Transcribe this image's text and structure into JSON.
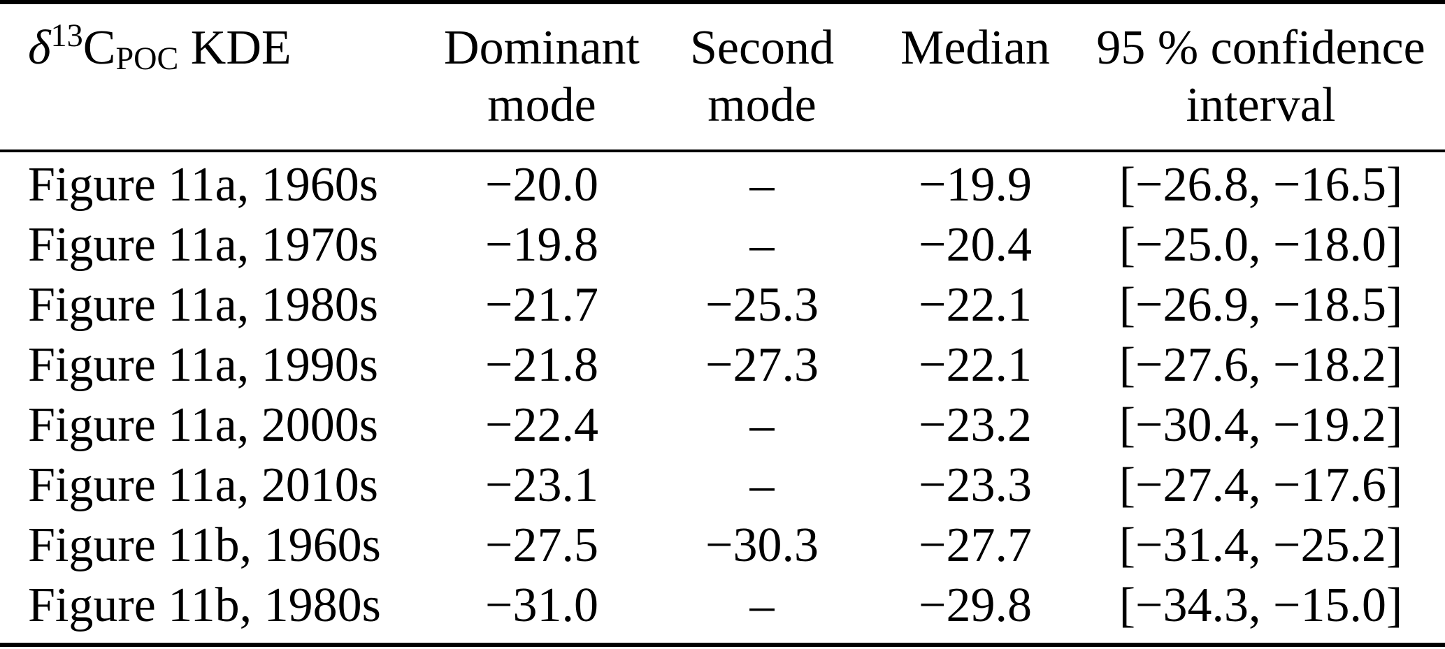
{
  "colors": {
    "background": "#ffffff",
    "text": "#000000",
    "rule": "#000000"
  },
  "table": {
    "header": {
      "kde_delta": "δ",
      "kde_sup": "13",
      "kde_c": "C",
      "kde_sub": "POC",
      "kde_rest": " KDE",
      "dominant_line1": "Dominant",
      "dominant_line2": "mode",
      "second_line1": "Second",
      "second_line2": "mode",
      "median": "Median",
      "ci_line1": "95 % confidence",
      "ci_line2": "interval"
    },
    "rows": [
      {
        "label": "Figure 11a, 1960s",
        "dominant": "−20.0",
        "second": "–",
        "median": "−19.9",
        "ci": "[−26.8, −16.5]"
      },
      {
        "label": "Figure 11a, 1970s",
        "dominant": "−19.8",
        "second": "–",
        "median": "−20.4",
        "ci": "[−25.0, −18.0]"
      },
      {
        "label": "Figure 11a, 1980s",
        "dominant": "−21.7",
        "second": "−25.3",
        "median": "−22.1",
        "ci": "[−26.9, −18.5]"
      },
      {
        "label": "Figure 11a, 1990s",
        "dominant": "−21.8",
        "second": "−27.3",
        "median": "−22.1",
        "ci": "[−27.6, −18.2]"
      },
      {
        "label": "Figure 11a, 2000s",
        "dominant": "−22.4",
        "second": "–",
        "median": "−23.2",
        "ci": "[−30.4, −19.2]"
      },
      {
        "label": "Figure 11a, 2010s",
        "dominant": "−23.1",
        "second": "–",
        "median": "−23.3",
        "ci": "[−27.4, −17.6]"
      },
      {
        "label": "Figure 11b, 1960s",
        "dominant": "−27.5",
        "second": "−30.3",
        "median": "−27.7",
        "ci": "[−31.4, −25.2]"
      },
      {
        "label": "Figure 11b, 1980s",
        "dominant": "−31.0",
        "second": "–",
        "median": "−29.8",
        "ci": "[−34.3, −15.0]"
      }
    ]
  },
  "chart_data": {
    "type": "table",
    "title": "δ13C_POC KDE statistics",
    "columns": [
      "δ13C_POC KDE",
      "Dominant mode",
      "Second mode",
      "Median",
      "95 % confidence interval"
    ],
    "rows": [
      [
        "Figure 11a, 1960s",
        -20.0,
        null,
        -19.9,
        [
          -26.8,
          -16.5
        ]
      ],
      [
        "Figure 11a, 1970s",
        -19.8,
        null,
        -20.4,
        [
          -25.0,
          -18.0
        ]
      ],
      [
        "Figure 11a, 1980s",
        -21.7,
        -25.3,
        -22.1,
        [
          -26.9,
          -18.5
        ]
      ],
      [
        "Figure 11a, 1990s",
        -21.8,
        -27.3,
        -22.1,
        [
          -27.6,
          -18.2
        ]
      ],
      [
        "Figure 11a, 2000s",
        -22.4,
        null,
        -23.2,
        [
          -30.4,
          -19.2
        ]
      ],
      [
        "Figure 11a, 2010s",
        -23.1,
        null,
        -23.3,
        [
          -27.4,
          -17.6
        ]
      ],
      [
        "Figure 11b, 1960s",
        -27.5,
        -30.3,
        -27.7,
        [
          -31.4,
          -25.2
        ]
      ],
      [
        "Figure 11b, 1980s",
        -31.0,
        null,
        -29.8,
        [
          -34.3,
          -15.0
        ]
      ]
    ]
  }
}
